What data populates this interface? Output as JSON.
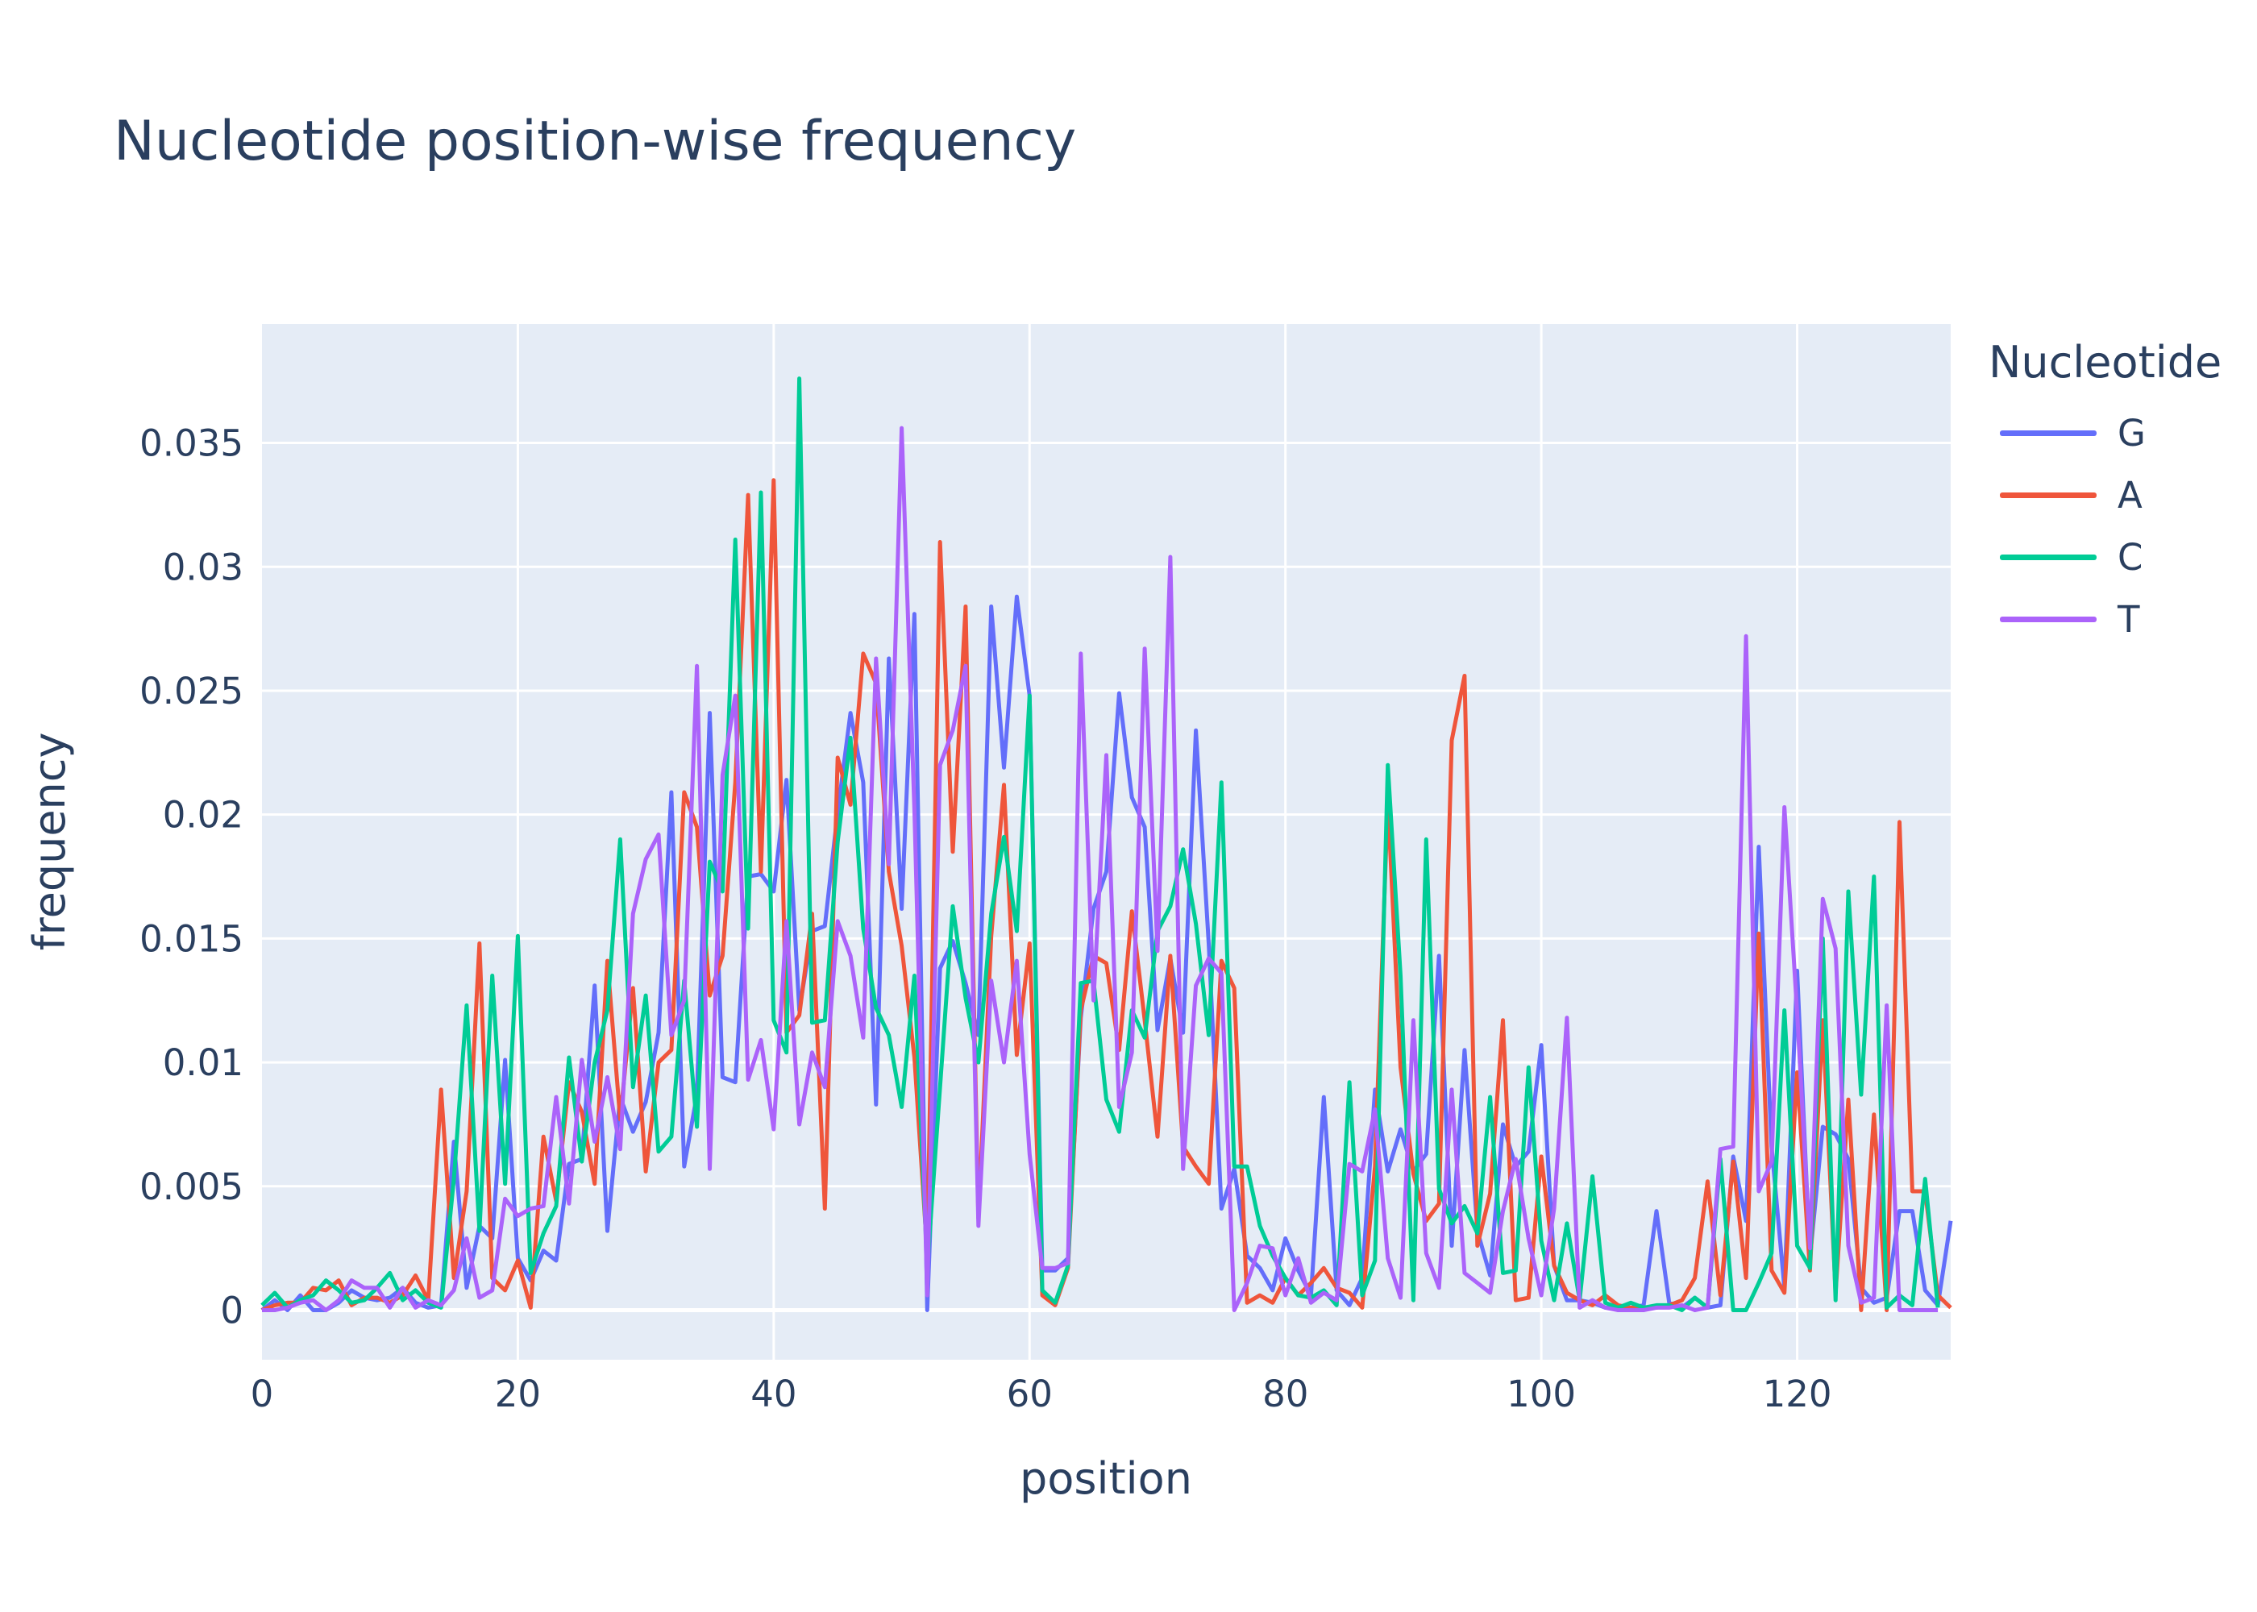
{
  "chart_data": {
    "type": "line",
    "title": "Nucleotide position-wise frequency",
    "xlabel": "position",
    "ylabel": "frequency",
    "xlim": [
      0,
      132
    ],
    "ylim": [
      -0.002,
      0.0398
    ],
    "xticks": [
      0,
      20,
      40,
      60,
      80,
      100,
      120
    ],
    "yticks": [
      0,
      0.005,
      0.01,
      0.015,
      0.02,
      0.025,
      0.03,
      0.035
    ],
    "ytick_labels": [
      "0",
      "0.005",
      "0.01",
      "0.015",
      "0.02",
      "0.025",
      "0.03",
      "0.035"
    ],
    "legend_title": "Nucleotide",
    "legend_position": "top-right, outside plot",
    "grid": true,
    "plot_background": "#e5ecf6",
    "series": [
      {
        "name": "G",
        "color": "#636efa",
        "values": [
          0,
          0.0004,
          0,
          0.0006,
          0,
          0,
          0.0003,
          0.0008,
          0.0005,
          0.0004,
          0.0005,
          0.0009,
          0.0003,
          0.0001,
          0.0002,
          0.0068,
          0.0009,
          0.0034,
          0.0029,
          0.0101,
          0.0021,
          0.0012,
          0.0024,
          0.002,
          0.0059,
          0.0061,
          0.0131,
          0.0032,
          0.0086,
          0.0072,
          0.0084,
          0.0112,
          0.0209,
          0.0058,
          0.0087,
          0.0241,
          0.0094,
          0.0092,
          0.0175,
          0.0176,
          0.0169,
          0.0214,
          0.0121,
          0.0153,
          0.0155,
          0.0201,
          0.0241,
          0.0213,
          0.0083,
          0.0263,
          0.0162,
          0.0281,
          0,
          0.0138,
          0.0149,
          0.0132,
          0.0111,
          0.0284,
          0.0219,
          0.0288,
          0.0248,
          0.0016,
          0.0016,
          0.0021,
          0.0118,
          0.0162,
          0.0177,
          0.0249,
          0.0207,
          0.0195,
          0.0113,
          0.0142,
          0.0112,
          0.0234,
          0.0148,
          0.0041,
          0.0057,
          0.0022,
          0.0017,
          0.0008,
          0.0029,
          0.0016,
          0.0006,
          0.0086,
          0.0008,
          0.0002,
          0.0013,
          0.0089,
          0.0056,
          0.0073,
          0.0056,
          0.0063,
          0.0143,
          0.0026,
          0.0105,
          0.0032,
          0.0014,
          0.0075,
          0.0058,
          0.0064,
          0.0107,
          0.0018,
          0.0004,
          0.0004,
          0.0003,
          0.0001,
          0.0001,
          0.0001,
          0.0002,
          0.004,
          0.0003,
          0.0001,
          0.0005,
          0.0001,
          0.0002,
          0.0062,
          0.0036,
          0.0187,
          0.0066,
          0.0009,
          0.0137,
          0.0021,
          0.0074,
          0.0071,
          0.0061,
          0.0009,
          0.0003,
          0.0005,
          0.004,
          0.004,
          0.0008,
          0.0002,
          0.0036
        ]
      },
      {
        "name": "A",
        "color": "#ef553b",
        "values": [
          0,
          0.0002,
          0.0003,
          0.0003,
          0.0009,
          0.0008,
          0.0012,
          0.0002,
          0.0005,
          0.0005,
          0.0003,
          0.0006,
          0.0014,
          0.0004,
          0.0089,
          0.0013,
          0.0048,
          0.0148,
          0.0013,
          0.0008,
          0.002,
          0.0001,
          0.007,
          0.0044,
          0.0092,
          0.008,
          0.0051,
          0.0141,
          0.0077,
          0.013,
          0.0056,
          0.01,
          0.0105,
          0.0209,
          0.0195,
          0.0127,
          0.0143,
          0.0213,
          0.0329,
          0.0177,
          0.0335,
          0.0112,
          0.0119,
          0.016,
          0.0041,
          0.0223,
          0.0204,
          0.0265,
          0.0253,
          0.0177,
          0.0147,
          0.0102,
          0.0023,
          0.031,
          0.0185,
          0.0284,
          0.0037,
          0.0151,
          0.0212,
          0.0103,
          0.0148,
          0.0006,
          0.0002,
          0.0017,
          0.0121,
          0.0143,
          0.014,
          0.0105,
          0.0161,
          0.0117,
          0.007,
          0.0143,
          0.0066,
          0.0058,
          0.0051,
          0.0141,
          0.013,
          0.0003,
          0.0006,
          0.0003,
          0.0013,
          0.0006,
          0.0011,
          0.0017,
          0.0009,
          0.0007,
          0.0001,
          0.0058,
          0.0206,
          0.0098,
          0.0055,
          0.0036,
          0.0043,
          0.023,
          0.0256,
          0.0026,
          0.0047,
          0.0117,
          0.0004,
          0.0005,
          0.0062,
          0.0018,
          0.0007,
          0.0004,
          0.0002,
          0.0006,
          0.0002,
          0.0001,
          0.0001,
          0.0001,
          0.0002,
          0.0004,
          0.0013,
          0.0052,
          0.0006,
          0.006,
          0.0013,
          0.0152,
          0.0016,
          0.0007,
          0.0096,
          0.0016,
          0.0117,
          0.0007,
          0.0085,
          0,
          0.0079,
          0,
          0.0197,
          0.0048,
          0.0048,
          0.0006,
          0.0001
        ]
      },
      {
        "name": "C",
        "color": "#00cc96",
        "values": [
          0.0002,
          0.0007,
          0.0001,
          0.0004,
          0.0006,
          0.0012,
          0.0008,
          0.0003,
          0.0004,
          0.0009,
          0.0015,
          0.0004,
          0.0008,
          0.0003,
          0.0001,
          0.0053,
          0.0123,
          0.0032,
          0.0135,
          0.0051,
          0.0151,
          0.0015,
          0.0031,
          0.0042,
          0.0102,
          0.006,
          0.01,
          0.0121,
          0.019,
          0.009,
          0.0127,
          0.0064,
          0.007,
          0.0133,
          0.0074,
          0.0181,
          0.0169,
          0.0311,
          0.0154,
          0.033,
          0.0117,
          0.0104,
          0.0376,
          0.0116,
          0.0117,
          0.0189,
          0.0231,
          0.0154,
          0.0122,
          0.0111,
          0.0082,
          0.0135,
          0.0017,
          0.009,
          0.0163,
          0.0126,
          0.01,
          0.016,
          0.0191,
          0.0153,
          0.0248,
          0.0008,
          0.0003,
          0.0018,
          0.0132,
          0.0133,
          0.0085,
          0.0072,
          0.0121,
          0.011,
          0.0153,
          0.0163,
          0.0186,
          0.0156,
          0.0111,
          0.0213,
          0.0058,
          0.0058,
          0.0034,
          0.0022,
          0.0013,
          0.0006,
          0.0005,
          0.0008,
          0.0002,
          0.0092,
          0.0006,
          0.002,
          0.022,
          0.0135,
          0.0004,
          0.019,
          0.0049,
          0.0035,
          0.0042,
          0.0031,
          0.0086,
          0.0015,
          0.0016,
          0.0098,
          0.0028,
          0.0004,
          0.0035,
          0.0004,
          0.0054,
          0.0003,
          0.0001,
          0.0003,
          0.0001,
          0.0002,
          0.0002,
          0,
          0.0005,
          0.0001,
          0.0061,
          0,
          0,
          0.0011,
          0.0023,
          0.0121,
          0.0026,
          0.0017,
          0.015,
          0.0004,
          0.0169,
          0.0087,
          0.0175,
          0.0001,
          0.0006,
          0.0002,
          0.0053,
          0.0001
        ]
      },
      {
        "name": "T",
        "color": "#ab63fa",
        "values": [
          0,
          0,
          0.0001,
          0.0003,
          0.0004,
          0,
          0.0004,
          0.0012,
          0.0009,
          0.0009,
          0.0001,
          0.0009,
          0.0001,
          0.0004,
          0.0002,
          0.0008,
          0.0029,
          0.0005,
          0.0008,
          0.0045,
          0.0038,
          0.0041,
          0.0042,
          0.0086,
          0.0043,
          0.0101,
          0.0068,
          0.0094,
          0.0065,
          0.016,
          0.0182,
          0.0192,
          0.0111,
          0.0125,
          0.026,
          0.0057,
          0.0216,
          0.0248,
          0.0093,
          0.0109,
          0.0073,
          0.0157,
          0.0075,
          0.0104,
          0.009,
          0.0157,
          0.0143,
          0.011,
          0.0263,
          0.018,
          0.0356,
          0.0202,
          0.0006,
          0.022,
          0.0234,
          0.026,
          0.0034,
          0.0133,
          0.01,
          0.0141,
          0.0063,
          0.0017,
          0.0017,
          0.0019,
          0.0265,
          0.0125,
          0.0224,
          0.0082,
          0.0104,
          0.0267,
          0.0145,
          0.0304,
          0.0057,
          0.0131,
          0.0142,
          0.0136,
          0.0,
          0.0011,
          0.0026,
          0.0025,
          0.0006,
          0.0021,
          0.0003,
          0.0007,
          0.0004,
          0.0059,
          0.0056,
          0.0081,
          0.0021,
          0.0005,
          0.0117,
          0.0023,
          0.0009,
          0.0089,
          0.0015,
          0.0011,
          0.0007,
          0.004,
          0.0061,
          0.0029,
          0.0006,
          0.0041,
          0.0118,
          0.0001,
          0.0004,
          0.0001,
          0,
          0,
          0,
          0.0001,
          0.0001,
          0.0002,
          0,
          0.0001,
          0.0065,
          0.0066,
          0.0272,
          0.0048,
          0.006,
          0.0203,
          0.012,
          0.0025,
          0.0166,
          0.0146,
          0.0026,
          0.0003,
          0.0005,
          0.0123,
          0,
          0,
          0,
          0
        ]
      }
    ]
  }
}
